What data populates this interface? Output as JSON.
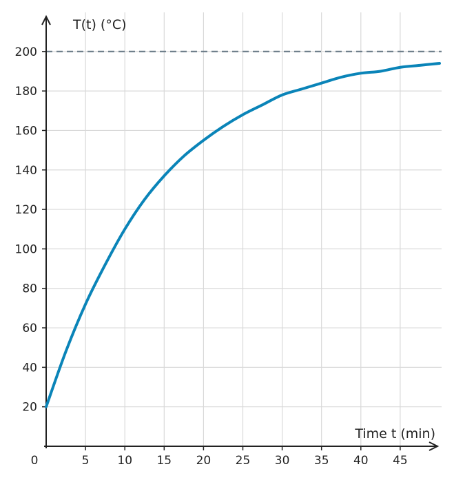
{
  "colors": {
    "curve": "#0a84b8",
    "asymptote": "#6b7b88",
    "grid": "#d9d9d9",
    "axis": "#222222"
  },
  "chart_data": {
    "type": "line",
    "title": "",
    "xlabel": "Time t (min)",
    "ylabel": "T(t) (°C)",
    "xlim": [
      0,
      50
    ],
    "ylim": [
      0,
      210
    ],
    "x_ticks": [
      5,
      10,
      15,
      20,
      25,
      30,
      35,
      40,
      45
    ],
    "x_tick_labels": [
      "5",
      "10",
      "15",
      "20",
      "25",
      "30",
      "35",
      "40",
      "45"
    ],
    "origin_label": "0",
    "y_ticks": [
      20,
      40,
      60,
      80,
      100,
      120,
      140,
      160,
      180,
      200
    ],
    "y_tick_labels": [
      "20",
      "40",
      "60",
      "80",
      "100",
      "120",
      "140",
      "160",
      "180",
      "200"
    ],
    "grid": true,
    "legend": "none",
    "series": [
      {
        "x": [
          0,
          2.5,
          5,
          7.5,
          10,
          12.5,
          15,
          17.5,
          20,
          22.5,
          25,
          27.5,
          30,
          32.5,
          35,
          37.5,
          40,
          42.5,
          45,
          47.5,
          50
        ],
        "y": [
          20,
          48,
          72,
          92,
          110,
          125,
          137,
          147,
          155,
          162,
          168,
          173,
          178,
          181,
          184,
          187,
          189,
          190,
          192,
          193,
          194
        ]
      }
    ],
    "asymptote": {
      "y": 200,
      "style": "dashed"
    }
  }
}
